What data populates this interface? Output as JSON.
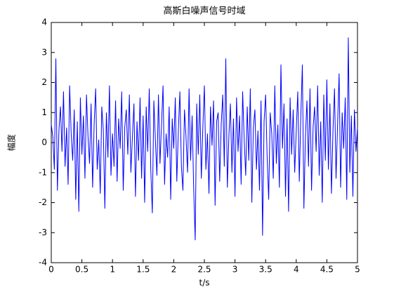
{
  "chart_data": {
    "type": "line",
    "title": "高斯白噪声信号时域",
    "x_label": "t/s",
    "y_label": "幅度",
    "xlim": [
      0,
      5
    ],
    "ylim": [
      -4,
      4
    ],
    "xticks": [
      0,
      0.5,
      1,
      1.5,
      2,
      2.5,
      3,
      3.5,
      4,
      4.5,
      5
    ],
    "yticks": [
      -4,
      -3,
      -2,
      -1,
      0,
      1,
      2,
      3,
      4
    ],
    "grid": false,
    "x": [
      0,
      0.025,
      0.05,
      0.075,
      0.1,
      0.125,
      0.15,
      0.175,
      0.2,
      0.225,
      0.25,
      0.275,
      0.3,
      0.325,
      0.35,
      0.375,
      0.4,
      0.425,
      0.45,
      0.475,
      0.5,
      0.525,
      0.55,
      0.575,
      0.6,
      0.625,
      0.65,
      0.675,
      0.7,
      0.725,
      0.75,
      0.775,
      0.8,
      0.825,
      0.85,
      0.875,
      0.9,
      0.925,
      0.95,
      0.975,
      1,
      1.025,
      1.05,
      1.075,
      1.1,
      1.125,
      1.15,
      1.175,
      1.2,
      1.225,
      1.25,
      1.275,
      1.3,
      1.325,
      1.35,
      1.375,
      1.4,
      1.425,
      1.45,
      1.475,
      1.5,
      1.525,
      1.55,
      1.575,
      1.6,
      1.625,
      1.65,
      1.675,
      1.7,
      1.725,
      1.75,
      1.775,
      1.8,
      1.825,
      1.85,
      1.875,
      1.9,
      1.925,
      1.95,
      1.975,
      2,
      2.025,
      2.05,
      2.075,
      2.1,
      2.125,
      2.15,
      2.175,
      2.2,
      2.225,
      2.25,
      2.275,
      2.3,
      2.325,
      2.35,
      2.375,
      2.4,
      2.425,
      2.45,
      2.475,
      2.5,
      2.525,
      2.55,
      2.575,
      2.6,
      2.625,
      2.65,
      2.675,
      2.7,
      2.725,
      2.75,
      2.775,
      2.8,
      2.825,
      2.85,
      2.875,
      2.9,
      2.925,
      2.95,
      2.975,
      3,
      3.025,
      3.05,
      3.075,
      3.1,
      3.125,
      3.15,
      3.175,
      3.2,
      3.225,
      3.25,
      3.275,
      3.3,
      3.325,
      3.35,
      3.375,
      3.4,
      3.425,
      3.45,
      3.475,
      3.5,
      3.525,
      3.55,
      3.575,
      3.6,
      3.625,
      3.65,
      3.675,
      3.7,
      3.725,
      3.75,
      3.775,
      3.8,
      3.825,
      3.85,
      3.875,
      3.9,
      3.925,
      3.95,
      3.975,
      4,
      4.025,
      4.05,
      4.075,
      4.1,
      4.125,
      4.15,
      4.175,
      4.2,
      4.225,
      4.25,
      4.275,
      4.3,
      4.325,
      4.35,
      4.375,
      4.4,
      4.425,
      4.45,
      4.475,
      4.5,
      4.525,
      4.55,
      4.575,
      4.6,
      4.625,
      4.65,
      4.675,
      4.7,
      4.725,
      4.75,
      4.775,
      4.8,
      4.825,
      4.85,
      4.875,
      4.9,
      4.925,
      4.95,
      4.975,
      5
    ],
    "series": [
      {
        "color": "#0000ff",
        "values": [
          0.6,
          0.2,
          -0.9,
          2.8,
          -1.6,
          0.4,
          1.2,
          -0.3,
          1.7,
          -0.8,
          0.5,
          -1.4,
          1.9,
          0.3,
          -0.6,
          1.1,
          -1.9,
          0.7,
          -2.3,
          1.5,
          -0.4,
          0.9,
          -1.2,
          1.6,
          0.2,
          -0.7,
          1.3,
          -1.5,
          0.6,
          1.8,
          -0.9,
          0.1,
          -1.7,
          1.2,
          0.4,
          -2.2,
          1.0,
          -0.5,
          1.9,
          -1.1,
          0.3,
          -0.8,
          1.4,
          -1.3,
          0.8,
          -0.2,
          1.7,
          -1.6,
          0.5,
          1.1,
          -0.4,
          1.6,
          -1.0,
          0.2,
          1.3,
          -1.8,
          0.7,
          -0.6,
          1.5,
          -1.2,
          0.9,
          -2.0,
          1.2,
          -0.3,
          1.8,
          -0.9,
          -2.35,
          1.4,
          0.1,
          -1.1,
          1.6,
          -0.7,
          0.6,
          1.9,
          -1.4,
          0.3,
          -0.5,
          1.2,
          -1.9,
          0.8,
          -0.2,
          1.5,
          -1.3,
          0.4,
          1.7,
          -0.8,
          -1.6,
          1.1,
          0.2,
          -1.0,
          1.8,
          -0.6,
          0.9,
          -1.5,
          -3.25,
          1.3,
          -0.4,
          1.6,
          -1.2,
          0.5,
          1.9,
          -0.9,
          0.3,
          -1.7,
          1.2,
          -0.1,
          1.4,
          -2.1,
          0.7,
          1.0,
          -1.3,
          0.6,
          1.6,
          -0.8,
          2.8,
          -1.5,
          0.2,
          1.3,
          -1.0,
          0.8,
          -1.8,
          1.5,
          -0.3,
          0.9,
          -1.4,
          1.7,
          0.1,
          -1.1,
          1.2,
          -0.6,
          1.8,
          -2.0,
          0.5,
          1.1,
          -0.9,
          0.4,
          -1.6,
          1.4,
          -3.1,
          0.7,
          1.6,
          -0.5,
          -1.9,
          1.0,
          0.3,
          -1.2,
          1.9,
          -0.7,
          0.6,
          -1.5,
          2.6,
          -0.2,
          1.3,
          -1.8,
          0.8,
          -2.3,
          1.5,
          -0.4,
          1.1,
          -1.0,
          0.4,
          1.7,
          -1.3,
          0.9,
          2.6,
          -2.2,
          0.2,
          1.4,
          -0.8,
          1.8,
          -1.6,
          0.5,
          1.2,
          -0.3,
          1.9,
          -1.1,
          0.7,
          -2.0,
          1.6,
          -0.6,
          2.1,
          -0.9,
          1.3,
          -1.7,
          0.4,
          1.8,
          -1.2,
          0.6,
          2.3,
          -1.5,
          1.0,
          -0.2,
          1.5,
          -1.9,
          3.5,
          -1.0,
          0.9,
          -1.8,
          1.1,
          -0.3,
          0.5
        ]
      }
    ]
  }
}
